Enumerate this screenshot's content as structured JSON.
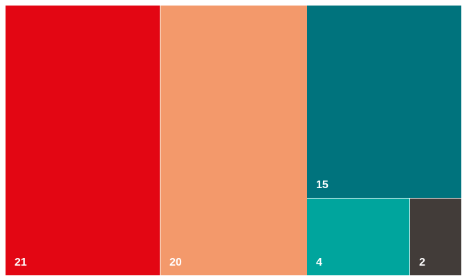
{
  "chart_data": {
    "type": "treemap",
    "title": "",
    "items": [
      {
        "value": 21,
        "label": "21",
        "color": "#e30613"
      },
      {
        "value": 20,
        "label": "20",
        "color": "#f3996b"
      },
      {
        "value": 15,
        "label": "15",
        "color": "#00737d"
      },
      {
        "value": 4,
        "label": "4",
        "color": "#00a59d"
      },
      {
        "value": 2,
        "label": "2",
        "color": "#423c39"
      }
    ]
  }
}
